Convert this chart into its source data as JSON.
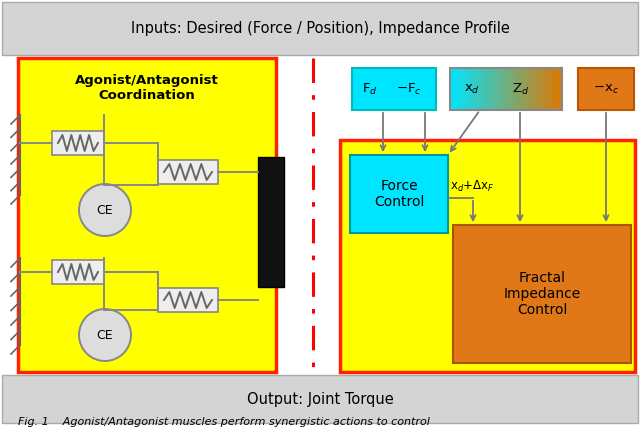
{
  "fig_width": 6.4,
  "fig_height": 4.36,
  "main_bg": "#ffffff",
  "header_text": "Inputs: Desired (Force / Position), Impedance Profile",
  "footer_text": "Output: Joint Torque",
  "caption_text": "Fig. 1    Agonist/Antagonist muscles perform synergistic actions to control",
  "left_box_color": "#ffff00",
  "left_box_border": "#ff2200",
  "left_box_title": "Agonist/Antagonist\nCoordination",
  "right_box_color": "#ffff00",
  "right_box_border": "#ff2200",
  "force_control_color": "#00e5ff",
  "fractal_control_color": "#e07818",
  "input_fd_fc_color": "#00e5ff",
  "input_neg_xc_color": "#e07818",
  "header_bg": "#d4d4d4",
  "footer_bg": "#d4d4d4",
  "arrow_color": "#777777",
  "line_color": "#888888",
  "spring_face": "#eeeeee",
  "spring_edge": "#888888",
  "ce_face": "#dddddd",
  "wall_color": "#666666",
  "black_rect": "#111111"
}
